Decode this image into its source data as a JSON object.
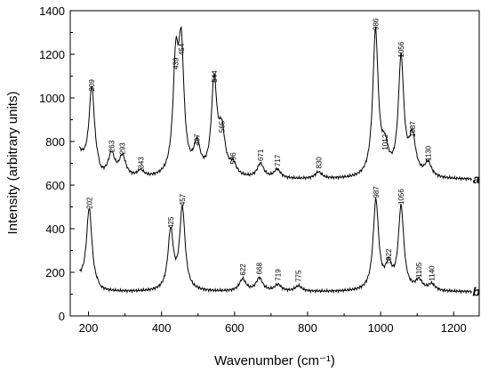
{
  "chart_data": {
    "type": "line",
    "xlabel": "Wavenumber (cm⁻¹)",
    "ylabel": "Intensity (arbitrary units)",
    "xlim": [
      150,
      1270
    ],
    "ylim": [
      0,
      1400
    ],
    "xticks": [
      200,
      400,
      600,
      800,
      1000,
      1200
    ],
    "yticks": [
      0,
      200,
      400,
      600,
      800,
      1000,
      1200,
      1400
    ],
    "grid": false,
    "series": [
      {
        "name": "a",
        "baseline": 625,
        "peaks": [
          {
            "x": 209,
            "y": 1010,
            "label": "209"
          },
          {
            "x": 263,
            "y": 730,
            "label": "263"
          },
          {
            "x": 293,
            "y": 720,
            "label": "293"
          },
          {
            "x": 343,
            "y": 655,
            "label": "343"
          },
          {
            "x": 439,
            "y": 1110,
            "label": "439"
          },
          {
            "x": 454,
            "y": 1175,
            "label": "454"
          },
          {
            "x": 497,
            "y": 760,
            "label": "497"
          },
          {
            "x": 544,
            "y": 1050,
            "label": "544"
          },
          {
            "x": 565,
            "y": 820,
            "label": "565"
          },
          {
            "x": 596,
            "y": 675,
            "label": "596"
          },
          {
            "x": 671,
            "y": 690,
            "label": "671"
          },
          {
            "x": 717,
            "y": 665,
            "label": "717"
          },
          {
            "x": 830,
            "y": 655,
            "label": "830"
          },
          {
            "x": 986,
            "y": 1290,
            "label": "986"
          },
          {
            "x": 1012,
            "y": 740,
            "label": "1012"
          },
          {
            "x": 1056,
            "y": 1165,
            "label": "1056"
          },
          {
            "x": 1087,
            "y": 800,
            "label": "1087"
          },
          {
            "x": 1130,
            "y": 690,
            "label": "1130"
          }
        ]
      },
      {
        "name": "b",
        "baseline": 110,
        "peaks": [
          {
            "x": 202,
            "y": 470,
            "label": "202"
          },
          {
            "x": 425,
            "y": 380,
            "label": "425"
          },
          {
            "x": 457,
            "y": 485,
            "label": "457"
          },
          {
            "x": 622,
            "y": 165,
            "label": "622"
          },
          {
            "x": 668,
            "y": 170,
            "label": "668"
          },
          {
            "x": 719,
            "y": 140,
            "label": "719"
          },
          {
            "x": 775,
            "y": 135,
            "label": "775"
          },
          {
            "x": 987,
            "y": 520,
            "label": "987"
          },
          {
            "x": 1022,
            "y": 215,
            "label": "1022"
          },
          {
            "x": 1056,
            "y": 490,
            "label": "1056"
          },
          {
            "x": 1105,
            "y": 155,
            "label": "1105"
          },
          {
            "x": 1140,
            "y": 140,
            "label": "1140"
          }
        ]
      }
    ]
  }
}
